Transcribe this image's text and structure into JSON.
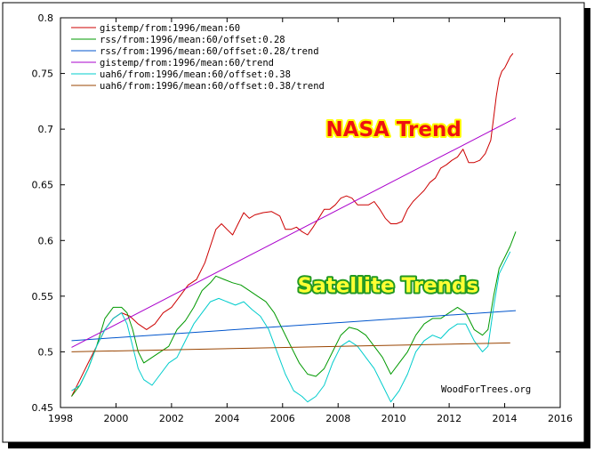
{
  "chart_data": {
    "type": "line",
    "xlim": [
      1998,
      2016
    ],
    "ylim": [
      0.45,
      0.8
    ],
    "x_ticks": [
      "1998",
      "2000",
      "2002",
      "2004",
      "2006",
      "2008",
      "2010",
      "2012",
      "2014",
      "2016"
    ],
    "y_ticks": [
      "0.45",
      "0.5",
      "0.55",
      "0.6",
      "0.65",
      "0.7",
      "0.75",
      "0.8"
    ],
    "grid": false,
    "legend_placement": "top-left",
    "series": [
      {
        "name": "gistemp/from:1996/mean:60",
        "color": "#cc0000",
        "points": [
          [
            1998.4,
            0.46
          ],
          [
            1998.7,
            0.475
          ],
          [
            1999.0,
            0.49
          ],
          [
            1999.3,
            0.505
          ],
          [
            1999.6,
            0.52
          ],
          [
            1999.9,
            0.53
          ],
          [
            2000.2,
            0.535
          ],
          [
            2000.5,
            0.532
          ],
          [
            2000.8,
            0.525
          ],
          [
            2001.1,
            0.52
          ],
          [
            2001.4,
            0.525
          ],
          [
            2001.7,
            0.535
          ],
          [
            2002.0,
            0.54
          ],
          [
            2002.3,
            0.55
          ],
          [
            2002.6,
            0.56
          ],
          [
            2002.9,
            0.565
          ],
          [
            2003.2,
            0.58
          ],
          [
            2003.4,
            0.595
          ],
          [
            2003.6,
            0.61
          ],
          [
            2003.8,
            0.615
          ],
          [
            2004.0,
            0.61
          ],
          [
            2004.2,
            0.605
          ],
          [
            2004.4,
            0.615
          ],
          [
            2004.6,
            0.625
          ],
          [
            2004.8,
            0.62
          ],
          [
            2005.0,
            0.623
          ],
          [
            2005.3,
            0.625
          ],
          [
            2005.6,
            0.626
          ],
          [
            2005.9,
            0.622
          ],
          [
            2006.1,
            0.61
          ],
          [
            2006.3,
            0.61
          ],
          [
            2006.5,
            0.612
          ],
          [
            2006.7,
            0.608
          ],
          [
            2006.9,
            0.605
          ],
          [
            2007.1,
            0.612
          ],
          [
            2007.3,
            0.62
          ],
          [
            2007.5,
            0.628
          ],
          [
            2007.7,
            0.628
          ],
          [
            2007.9,
            0.632
          ],
          [
            2008.1,
            0.638
          ],
          [
            2008.3,
            0.64
          ],
          [
            2008.5,
            0.638
          ],
          [
            2008.7,
            0.632
          ],
          [
            2008.9,
            0.632
          ],
          [
            2009.1,
            0.632
          ],
          [
            2009.3,
            0.635
          ],
          [
            2009.5,
            0.628
          ],
          [
            2009.7,
            0.62
          ],
          [
            2009.9,
            0.615
          ],
          [
            2010.1,
            0.615
          ],
          [
            2010.3,
            0.617
          ],
          [
            2010.5,
            0.628
          ],
          [
            2010.7,
            0.635
          ],
          [
            2010.9,
            0.64
          ],
          [
            2011.1,
            0.645
          ],
          [
            2011.3,
            0.652
          ],
          [
            2011.5,
            0.656
          ],
          [
            2011.7,
            0.665
          ],
          [
            2011.9,
            0.668
          ],
          [
            2012.1,
            0.672
          ],
          [
            2012.3,
            0.675
          ],
          [
            2012.5,
            0.682
          ],
          [
            2012.7,
            0.67
          ],
          [
            2012.9,
            0.67
          ],
          [
            2013.1,
            0.672
          ],
          [
            2013.3,
            0.678
          ],
          [
            2013.5,
            0.69
          ],
          [
            2013.6,
            0.71
          ],
          [
            2013.7,
            0.73
          ],
          [
            2013.8,
            0.745
          ],
          [
            2013.9,
            0.752
          ],
          [
            2014.0,
            0.755
          ],
          [
            2014.1,
            0.76
          ],
          [
            2014.2,
            0.765
          ],
          [
            2014.3,
            0.768
          ]
        ]
      },
      {
        "name": "rss/from:1996/mean:60/offset:0.28",
        "color": "#009900",
        "points": [
          [
            1998.4,
            0.46
          ],
          [
            1998.7,
            0.47
          ],
          [
            1999.0,
            0.485
          ],
          [
            1999.3,
            0.505
          ],
          [
            1999.6,
            0.53
          ],
          [
            1999.9,
            0.54
          ],
          [
            2000.2,
            0.54
          ],
          [
            2000.4,
            0.535
          ],
          [
            2000.6,
            0.52
          ],
          [
            2000.8,
            0.5
          ],
          [
            2001.0,
            0.49
          ],
          [
            2001.3,
            0.495
          ],
          [
            2001.6,
            0.5
          ],
          [
            2001.9,
            0.505
          ],
          [
            2002.2,
            0.52
          ],
          [
            2002.5,
            0.528
          ],
          [
            2002.8,
            0.54
          ],
          [
            2003.1,
            0.555
          ],
          [
            2003.4,
            0.562
          ],
          [
            2003.6,
            0.568
          ],
          [
            2003.9,
            0.565
          ],
          [
            2004.2,
            0.562
          ],
          [
            2004.5,
            0.56
          ],
          [
            2004.8,
            0.555
          ],
          [
            2005.1,
            0.55
          ],
          [
            2005.4,
            0.545
          ],
          [
            2005.7,
            0.535
          ],
          [
            2006.0,
            0.52
          ],
          [
            2006.3,
            0.505
          ],
          [
            2006.6,
            0.49
          ],
          [
            2006.9,
            0.48
          ],
          [
            2007.2,
            0.478
          ],
          [
            2007.5,
            0.485
          ],
          [
            2007.8,
            0.5
          ],
          [
            2008.1,
            0.515
          ],
          [
            2008.4,
            0.522
          ],
          [
            2008.7,
            0.52
          ],
          [
            2009.0,
            0.515
          ],
          [
            2009.3,
            0.505
          ],
          [
            2009.6,
            0.495
          ],
          [
            2009.9,
            0.48
          ],
          [
            2010.2,
            0.49
          ],
          [
            2010.5,
            0.5
          ],
          [
            2010.8,
            0.515
          ],
          [
            2011.1,
            0.525
          ],
          [
            2011.4,
            0.53
          ],
          [
            2011.7,
            0.53
          ],
          [
            2012.0,
            0.535
          ],
          [
            2012.3,
            0.54
          ],
          [
            2012.6,
            0.535
          ],
          [
            2012.9,
            0.52
          ],
          [
            2013.2,
            0.515
          ],
          [
            2013.4,
            0.52
          ],
          [
            2013.6,
            0.55
          ],
          [
            2013.8,
            0.575
          ],
          [
            2014.0,
            0.585
          ],
          [
            2014.2,
            0.595
          ],
          [
            2014.4,
            0.608
          ]
        ]
      },
      {
        "name": "rss/from:1996/mean:60/offset:0.28/trend",
        "color": "#0055cc",
        "points": [
          [
            1998.4,
            0.51
          ],
          [
            2014.4,
            0.537
          ]
        ]
      },
      {
        "name": "gistemp/from:1996/mean:60/trend",
        "color": "#aa00cc",
        "points": [
          [
            1998.4,
            0.504
          ],
          [
            2014.4,
            0.71
          ]
        ]
      },
      {
        "name": "uah6/from:1996/mean:60/offset:0.38",
        "color": "#00cccc",
        "points": [
          [
            1998.4,
            0.465
          ],
          [
            1998.7,
            0.47
          ],
          [
            1999.0,
            0.485
          ],
          [
            1999.3,
            0.505
          ],
          [
            1999.6,
            0.52
          ],
          [
            1999.9,
            0.53
          ],
          [
            2000.2,
            0.535
          ],
          [
            2000.4,
            0.525
          ],
          [
            2000.6,
            0.505
          ],
          [
            2000.8,
            0.485
          ],
          [
            2001.0,
            0.475
          ],
          [
            2001.3,
            0.47
          ],
          [
            2001.6,
            0.48
          ],
          [
            2001.9,
            0.49
          ],
          [
            2002.2,
            0.495
          ],
          [
            2002.5,
            0.51
          ],
          [
            2002.8,
            0.525
          ],
          [
            2003.1,
            0.535
          ],
          [
            2003.4,
            0.545
          ],
          [
            2003.7,
            0.548
          ],
          [
            2004.0,
            0.545
          ],
          [
            2004.3,
            0.542
          ],
          [
            2004.6,
            0.545
          ],
          [
            2004.9,
            0.538
          ],
          [
            2005.2,
            0.532
          ],
          [
            2005.5,
            0.52
          ],
          [
            2005.8,
            0.5
          ],
          [
            2006.1,
            0.48
          ],
          [
            2006.4,
            0.465
          ],
          [
            2006.7,
            0.46
          ],
          [
            2006.9,
            0.455
          ],
          [
            2007.2,
            0.46
          ],
          [
            2007.5,
            0.47
          ],
          [
            2007.8,
            0.49
          ],
          [
            2008.1,
            0.505
          ],
          [
            2008.4,
            0.51
          ],
          [
            2008.7,
            0.505
          ],
          [
            2009.0,
            0.495
          ],
          [
            2009.3,
            0.485
          ],
          [
            2009.6,
            0.47
          ],
          [
            2009.9,
            0.455
          ],
          [
            2010.2,
            0.465
          ],
          [
            2010.5,
            0.48
          ],
          [
            2010.8,
            0.5
          ],
          [
            2011.1,
            0.51
          ],
          [
            2011.4,
            0.515
          ],
          [
            2011.7,
            0.512
          ],
          [
            2012.0,
            0.52
          ],
          [
            2012.3,
            0.525
          ],
          [
            2012.6,
            0.525
          ],
          [
            2012.9,
            0.51
          ],
          [
            2013.2,
            0.5
          ],
          [
            2013.4,
            0.505
          ],
          [
            2013.6,
            0.54
          ],
          [
            2013.8,
            0.57
          ],
          [
            2014.0,
            0.58
          ],
          [
            2014.2,
            0.59
          ]
        ]
      },
      {
        "name": "uah6/from:1996/mean:60/offset:0.38/trend",
        "color": "#994400",
        "points": [
          [
            1998.4,
            0.5
          ],
          [
            2014.2,
            0.508
          ]
        ]
      }
    ],
    "annotations": [
      {
        "text": "NASA Trend",
        "x": 2010.0,
        "y": 0.7,
        "fill": "#ee1111",
        "outline": "#ffff00"
      },
      {
        "text": "Satellite Trends",
        "x": 2009.8,
        "y": 0.56,
        "fill": "#ffff33",
        "outline": "#229922"
      }
    ],
    "credit": "WoodForTrees.org"
  }
}
